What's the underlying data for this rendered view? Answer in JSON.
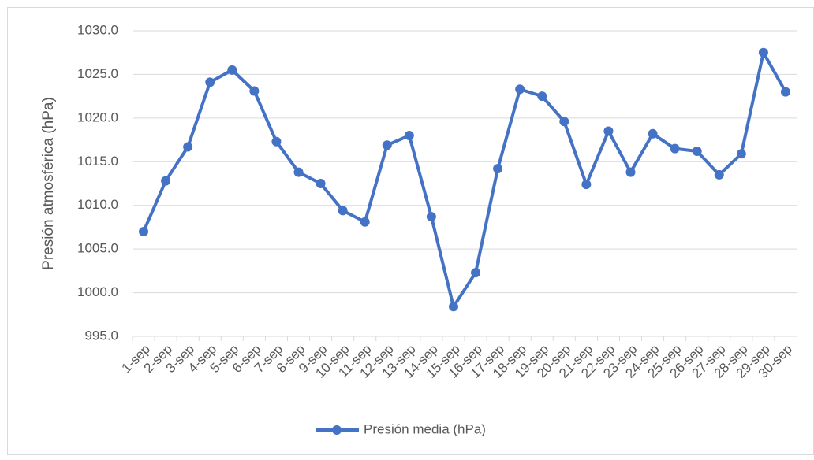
{
  "chart_data": {
    "type": "line",
    "y_label": "Presión atmosférica (hPa)",
    "categories": [
      "1-sep",
      "2-sep",
      "3-sep",
      "4-sep",
      "5-sep",
      "6-sep",
      "7-sep",
      "8-sep",
      "9-sep",
      "10-sep",
      "11-sep",
      "12-sep",
      "13-sep",
      "14-sep",
      "15-sep",
      "16-sep",
      "17-sep",
      "18-sep",
      "19-sep",
      "20-sep",
      "21-sep",
      "22-sep",
      "23-sep",
      "24-sep",
      "25-sep",
      "26-sep",
      "27-sep",
      "28-sep",
      "29-sep",
      "30-sep"
    ],
    "series": [
      {
        "name": "Presión media (hPa)",
        "color": "#4472c4",
        "values": [
          1007.0,
          1012.8,
          1016.7,
          1024.1,
          1025.5,
          1023.1,
          1017.3,
          1013.8,
          1012.5,
          1009.4,
          1008.1,
          1016.9,
          1018.0,
          1008.7,
          998.4,
          1002.3,
          1014.2,
          1023.3,
          1022.5,
          1019.6,
          1012.4,
          1018.5,
          1013.8,
          1018.2,
          1016.5,
          1016.2,
          1013.5,
          1015.9,
          1027.5,
          1023.0
        ]
      }
    ],
    "ylim": [
      995,
      1030
    ],
    "yticks": [
      {
        "value": 995,
        "label": "995.0"
      },
      {
        "value": 1000,
        "label": "1000.0"
      },
      {
        "value": 1005,
        "label": "1005.0"
      },
      {
        "value": 1010,
        "label": "1010.0"
      },
      {
        "value": 1015,
        "label": "1015.0"
      },
      {
        "value": 1020,
        "label": "1020.0"
      },
      {
        "value": 1025,
        "label": "1025.0"
      },
      {
        "value": 1030,
        "label": "1030.0"
      }
    ],
    "grid": true,
    "legend": "bottom"
  }
}
